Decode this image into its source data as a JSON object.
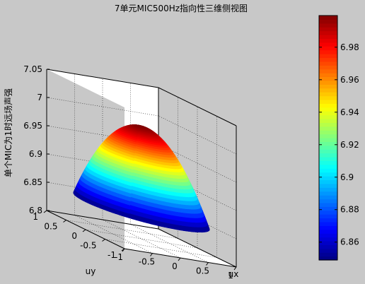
{
  "chart_data": {
    "type": "surface",
    "title": "7单元MIC500Hz指向性三维侧视图",
    "xlabel": "ux",
    "ylabel": "uy",
    "zlabel": "单个MIC为1时远场声强",
    "xticks": [
      "-1",
      "-0.5",
      "0",
      "0.5",
      "1"
    ],
    "yticks": [
      "-1",
      "-0.5",
      "0",
      "0.5",
      "1"
    ],
    "zticks": [
      "6.8",
      "6.85",
      "6.9",
      "6.95",
      "7",
      "7.05"
    ],
    "xlim": [
      -1,
      1
    ],
    "ylim": [
      -1,
      1
    ],
    "zlim": [
      6.8,
      7.05
    ],
    "colorbar_ticks": [
      "6.86",
      "6.88",
      "6.9",
      "6.92",
      "6.94",
      "6.96",
      "6.98"
    ],
    "colorbar_range": [
      6.849,
      6.9995
    ],
    "colormap": "jet",
    "surface": {
      "domain": "unit disk, ux^2 + uy^2 <= 1",
      "peak": {
        "ux": 0,
        "uy": 0,
        "value": 6.9995
      },
      "edge_value": 6.849
    },
    "grid": true,
    "box": true
  }
}
